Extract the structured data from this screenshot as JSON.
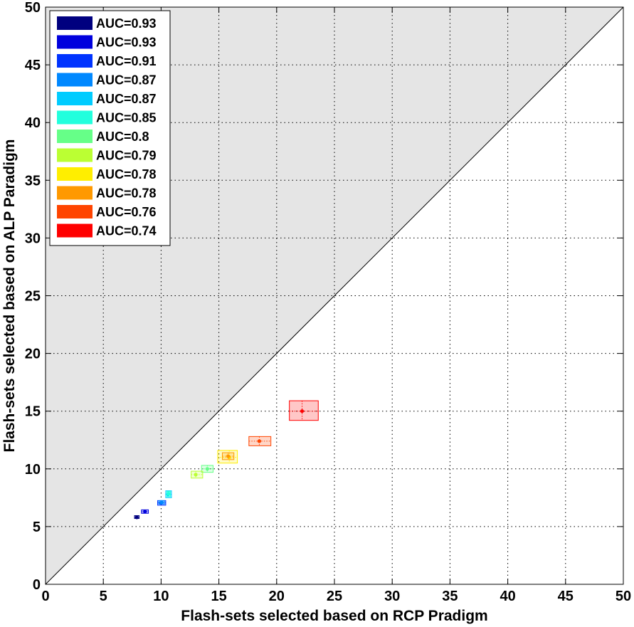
{
  "chart_data": {
    "type": "scatter",
    "title": "",
    "xlabel": "Flash-sets selected based on RCP Pradigm",
    "ylabel": "Flash-sets selected based on ALP Paradigm",
    "xlim": [
      0,
      50
    ],
    "ylim": [
      0,
      50
    ],
    "xticks": [
      0,
      5,
      10,
      15,
      20,
      25,
      30,
      35,
      40,
      45,
      50
    ],
    "yticks": [
      0,
      5,
      10,
      15,
      20,
      25,
      30,
      35,
      40,
      45,
      50
    ],
    "grid": true,
    "legend_position": "top-left",
    "shaded_region": "above y = x diagonal",
    "series": [
      {
        "name": "AUC=0.93",
        "color": "#00007f",
        "x": 7.9,
        "y": 5.8,
        "x_range": [
          7.7,
          8.1
        ],
        "y_range": [
          5.7,
          5.95
        ]
      },
      {
        "name": "AUC=0.93",
        "color": "#0000dd",
        "x": 8.6,
        "y": 6.3,
        "x_range": [
          8.3,
          8.9
        ],
        "y_range": [
          6.15,
          6.45
        ]
      },
      {
        "name": "AUC=0.91",
        "color": "#0033ff",
        "x": 10.0,
        "y": 7.05,
        "x_range": [
          9.7,
          10.4
        ],
        "y_range": [
          6.85,
          7.25
        ]
      },
      {
        "name": "AUC=0.87",
        "color": "#0088ff",
        "x": 10.05,
        "y": 7.1,
        "x_range": [
          9.8,
          10.3
        ],
        "y_range": [
          6.95,
          7.25
        ]
      },
      {
        "name": "AUC=0.87",
        "color": "#00ccff",
        "x": 10.6,
        "y": 7.8,
        "x_range": [
          10.4,
          10.9
        ],
        "y_range": [
          7.5,
          8.1
        ]
      },
      {
        "name": "AUC=0.85",
        "color": "#22ffdd",
        "x": 10.65,
        "y": 7.85,
        "x_range": [
          10.5,
          10.8
        ],
        "y_range": [
          7.6,
          8.05
        ]
      },
      {
        "name": "AUC=0.8",
        "color": "#66ff88",
        "x": 14.0,
        "y": 10.0,
        "x_range": [
          13.5,
          14.5
        ],
        "y_range": [
          9.7,
          10.3
        ]
      },
      {
        "name": "AUC=0.79",
        "color": "#bbff33",
        "x": 13.0,
        "y": 9.5,
        "x_range": [
          12.6,
          13.6
        ],
        "y_range": [
          9.2,
          9.8
        ]
      },
      {
        "name": "AUC=0.78",
        "color": "#ffee00",
        "x": 15.9,
        "y": 11.0,
        "x_range": [
          14.9,
          16.6
        ],
        "y_range": [
          10.5,
          11.6
        ]
      },
      {
        "name": "AUC=0.78",
        "color": "#ff9900",
        "x": 15.8,
        "y": 11.1,
        "x_range": [
          15.3,
          16.3
        ],
        "y_range": [
          10.8,
          11.4
        ]
      },
      {
        "name": "AUC=0.76",
        "color": "#ff4400",
        "x": 18.5,
        "y": 12.4,
        "x_range": [
          17.6,
          19.5
        ],
        "y_range": [
          12.0,
          12.8
        ]
      },
      {
        "name": "AUC=0.74",
        "color": "#ff0000",
        "x": 22.2,
        "y": 15.0,
        "x_range": [
          21.1,
          23.6
        ],
        "y_range": [
          14.2,
          15.9
        ]
      }
    ]
  }
}
